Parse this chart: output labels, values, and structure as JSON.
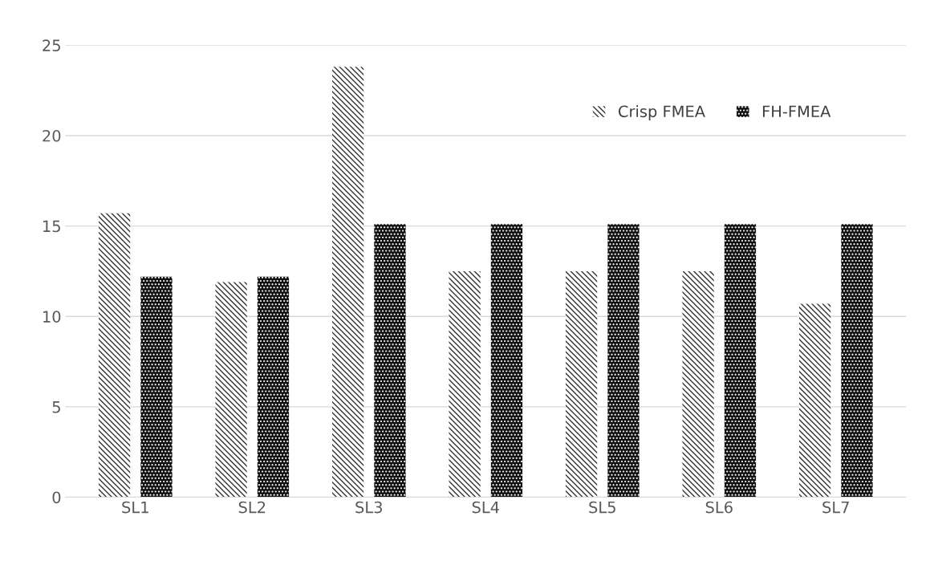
{
  "chart_data": {
    "type": "bar",
    "categories": [
      "SL1",
      "SL2",
      "SL3",
      "SL4",
      "SL5",
      "SL6",
      "SL7"
    ],
    "series": [
      {
        "name": "Crisp FMEA",
        "color": "#333333",
        "values": [
          15.7,
          11.9,
          23.8,
          12.5,
          12.5,
          12.5,
          10.7
        ]
      },
      {
        "name": "FH-FMEA",
        "color": "#111111",
        "values": [
          12.2,
          12.2,
          15.1,
          15.1,
          15.1,
          15.1,
          15.1
        ]
      }
    ],
    "ylim": [
      0,
      25
    ],
    "yticks": [
      0,
      5,
      10,
      15,
      20,
      25
    ],
    "grid": "y",
    "legend": "top right"
  }
}
